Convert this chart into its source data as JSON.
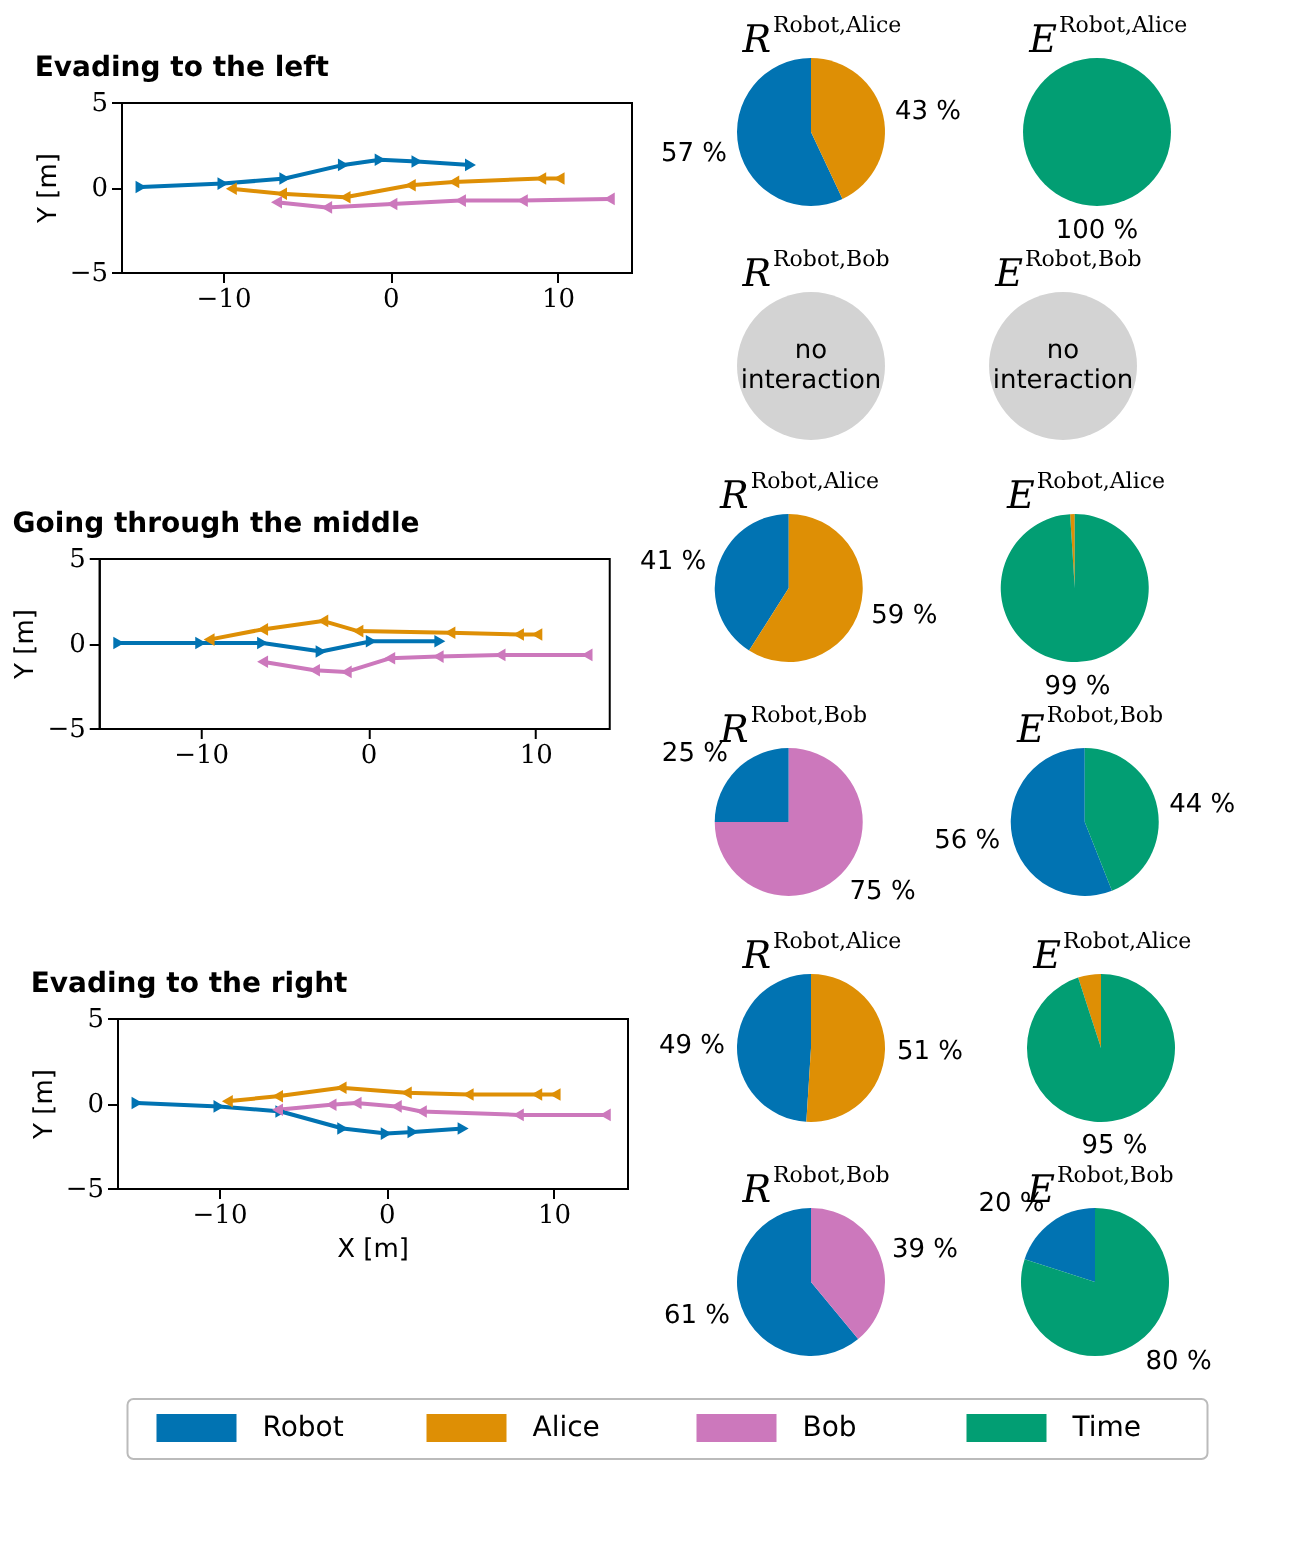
{
  "chart_data": [
    {
      "type": "line",
      "title": "Evading to the left",
      "ylabel": "Y [m]",
      "xlim": [
        -16.1,
        14.4
      ],
      "ylim": [
        -5,
        5
      ],
      "xticks": [
        -10,
        0,
        10
      ],
      "yticks": [
        -5,
        0,
        5
      ],
      "marker": "triangle",
      "legend": "bottom",
      "series": [
        {
          "name": "Robot",
          "color": "#0173b2",
          "x": [
            -14.9,
            -10,
            -6.3,
            -2.8,
            -0.6,
            1.6,
            4.8
          ],
          "values": [
            0,
            0.2,
            0.5,
            1.3,
            1.6,
            1.5,
            1.3
          ]
        },
        {
          "name": "Alice",
          "color": "#de8f05",
          "x": [
            10.1,
            9,
            3.8,
            1.2,
            -2.7,
            -6.5,
            -9.5
          ],
          "values": [
            0.5,
            0.5,
            0.3,
            0.1,
            -0.6,
            -0.4,
            -0.1
          ]
        },
        {
          "name": "Bob",
          "color": "#cc78bc",
          "x": [
            13.1,
            7.9,
            4.2,
            0.1,
            -3.8,
            -6.8
          ],
          "values": [
            -0.7,
            -0.8,
            -0.8,
            -1,
            -1.2,
            -0.9
          ]
        }
      ]
    },
    {
      "type": "pie",
      "title": "R$^{Robot,Alice}$",
      "values": [
        57,
        43
      ],
      "colors": [
        "#0173b2",
        "#de8f05"
      ],
      "value_labels": [
        "57 %",
        "43 %"
      ]
    },
    {
      "type": "pie",
      "title": "E$^{Robot,Alice}$",
      "categories": [
        "Time"
      ],
      "values": [
        100
      ],
      "colors": [
        "#029e73"
      ],
      "value_labels": [
        "100 %"
      ]
    },
    {
      "type": "other",
      "title": "R$^{Robot,Bob}$",
      "annotations": [
        "no interaction"
      ]
    },
    {
      "type": "other",
      "title": "E$^{Robot,Bob}$",
      "annotations": [
        "no interaction"
      ]
    },
    {
      "type": "line",
      "title": "Going through the middle",
      "ylabel": "Y [m]",
      "xlim": [
        -16.1,
        14.4
      ],
      "ylim": [
        -5,
        5
      ],
      "xticks": [
        -10,
        0,
        10
      ],
      "yticks": [
        -5,
        0,
        5
      ],
      "marker": "triangle",
      "series": [
        {
          "name": "Robot",
          "color": "#0173b2",
          "x": [
            -14.9,
            -10,
            -6.3,
            -2.8,
            0.2,
            4.3
          ],
          "values": [
            0,
            0,
            0,
            -0.5,
            0.1,
            0.1
          ]
        },
        {
          "name": "Alice",
          "color": "#de8f05",
          "x": [
            10.1,
            9,
            4.9,
            -0.6,
            -2.7,
            -6.3,
            -9.5
          ],
          "values": [
            0.5,
            0.5,
            0.6,
            0.7,
            1.3,
            0.8,
            0.2
          ]
        },
        {
          "name": "Bob",
          "color": "#cc78bc",
          "x": [
            13.1,
            7.9,
            4.2,
            1.3,
            -1.3,
            -3.2,
            -6.3
          ],
          "values": [
            -0.7,
            -0.7,
            -0.8,
            -0.9,
            -1.7,
            -1.6,
            -1.1
          ]
        }
      ]
    },
    {
      "type": "pie",
      "title": "R$^{Robot,Alice}$",
      "values": [
        41,
        59
      ],
      "colors": [
        "#0173b2",
        "#de8f05"
      ],
      "value_labels": [
        "41 %",
        "59 %"
      ]
    },
    {
      "type": "pie",
      "title": "E$^{Robot,Alice}$",
      "values": [
        1,
        99
      ],
      "colors": [
        "#de8f05",
        "#029e73"
      ],
      "value_labels": [
        null,
        "99 %"
      ]
    },
    {
      "type": "pie",
      "title": "R$^{Robot,Bob}$",
      "values": [
        25,
        75
      ],
      "colors": [
        "#0173b2",
        "#cc78bc"
      ],
      "value_labels": [
        "25 %",
        "75 %"
      ]
    },
    {
      "type": "pie",
      "title": "E$^{Robot,Bob}$",
      "values": [
        56,
        44
      ],
      "colors": [
        "#0173b2",
        "#029e73"
      ],
      "value_labels": [
        "56 %",
        "44 %"
      ]
    },
    {
      "type": "line",
      "title": "Evading to the right",
      "xlabel": "X [m]",
      "ylabel": "Y [m]",
      "xlim": [
        -16.1,
        14.4
      ],
      "ylim": [
        -5,
        5
      ],
      "xticks": [
        -10,
        0,
        10
      ],
      "yticks": [
        -5,
        0,
        5
      ],
      "marker": "triangle",
      "series": [
        {
          "name": "Robot",
          "color": "#0173b2",
          "x": [
            -14.9,
            -10,
            -6.3,
            -2.6,
            0,
            1.6,
            4.6
          ],
          "values": [
            0,
            -0.2,
            -0.5,
            -1.5,
            -1.8,
            -1.7,
            -1.5
          ]
        },
        {
          "name": "Alice",
          "color": "#de8f05",
          "x": [
            10.1,
            9,
            4.9,
            1.2,
            -2.7,
            -6.5,
            -9.5
          ],
          "values": [
            0.5,
            0.5,
            0.5,
            0.6,
            0.9,
            0.4,
            0.1
          ]
        },
        {
          "name": "Bob",
          "color": "#cc78bc",
          "x": [
            13.1,
            7.9,
            2.1,
            0.6,
            -1.8,
            -3.3,
            -6.5
          ],
          "values": [
            -0.7,
            -0.7,
            -0.5,
            -0.2,
            0,
            -0.1,
            -0.4
          ]
        }
      ]
    },
    {
      "type": "pie",
      "title": "R$^{Robot,Alice}$",
      "values": [
        49,
        51
      ],
      "colors": [
        "#0173b2",
        "#de8f05"
      ],
      "value_labels": [
        "49 %",
        "51 %"
      ]
    },
    {
      "type": "pie",
      "title": "E$^{Robot,Alice}$",
      "values": [
        5,
        95
      ],
      "colors": [
        "#de8f05",
        "#029e73"
      ],
      "value_labels": [
        null,
        "95 %"
      ]
    },
    {
      "type": "pie",
      "title": "R$^{Robot,Bob}$",
      "values": [
        61,
        39
      ],
      "colors": [
        "#0173b2",
        "#cc78bc"
      ],
      "value_labels": [
        "61 %",
        "39 %"
      ]
    },
    {
      "type": "pie",
      "title": "E$^{Robot,Bob}$",
      "values": [
        20,
        80
      ],
      "colors": [
        "#0173b2",
        "#029e73"
      ],
      "value_labels": [
        "20 %",
        "80 %"
      ]
    }
  ]
}
